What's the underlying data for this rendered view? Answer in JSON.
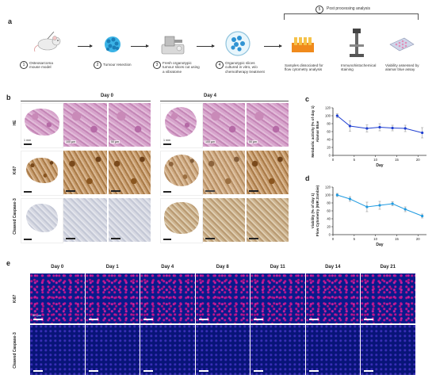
{
  "panel_labels": {
    "a": "a",
    "b": "b",
    "c": "c",
    "d": "d",
    "e": "e"
  },
  "workflow": {
    "post_processing": {
      "number": "5",
      "label": "Post processing analysis"
    },
    "steps": [
      {
        "number": "1",
        "text": "Osteosarcoma\nmouse model",
        "icon": "mouse-icon"
      },
      {
        "number": "2",
        "text": "Tumour resection",
        "icon": "tumour-cells-icon"
      },
      {
        "number": "3",
        "text": "Fresh organotypic\ntumour slices cut using\na vibratome",
        "icon": "vibratome-icon"
      },
      {
        "number": "4",
        "text": "Organotypic slices\ncultured in vitro, w/o\nchemotherapy treatment",
        "icon": "culture-dish-icon"
      }
    ],
    "post_items": [
      {
        "text": "Samples dissociated for\nflow cytometry analysis",
        "icon": "cytometry-tubes-icon"
      },
      {
        "text": "Immunohistochemical\nstaining",
        "icon": "microscope-icon"
      },
      {
        "text": "Viability assessed by\nalamar blue assay",
        "icon": "well-plate-icon"
      }
    ]
  },
  "histology": {
    "days": [
      "Day 0",
      "Day 4"
    ],
    "rows": [
      "HE",
      "Ki67",
      "Cleaved Caspase-3"
    ],
    "scale_labels": {
      "whole": "1 mm",
      "mid": "100 µm",
      "zoom": "50 µm"
    }
  },
  "chart_data": [
    {
      "type": "line",
      "panel": "c",
      "ylabel": "Metabolic activity (% of day 1)\nAlamar Blue",
      "xlabel": "Day",
      "xlim": [
        0,
        22
      ],
      "ylim": [
        0,
        120
      ],
      "xticks": [
        0,
        5,
        10,
        15,
        20
      ],
      "yticks": [
        0,
        20,
        40,
        60,
        80,
        100,
        120
      ],
      "x": [
        1,
        4,
        8,
        11,
        14,
        17,
        21
      ],
      "y": [
        100,
        74,
        68,
        71,
        69,
        68,
        57
      ],
      "error": [
        5,
        13,
        9,
        9,
        7,
        8,
        13
      ],
      "color": "#1f3fd1",
      "grid": false
    },
    {
      "type": "line",
      "panel": "d",
      "ylabel": "Viability (% of day 1)\nFlow Cytometry (NIR Zombie)",
      "xlabel": "Day",
      "xlim": [
        0,
        22
      ],
      "ylim": [
        0,
        120
      ],
      "xticks": [
        0,
        5,
        10,
        15,
        20
      ],
      "yticks": [
        0,
        20,
        40,
        60,
        80,
        100,
        120
      ],
      "x": [
        1,
        4,
        8,
        11,
        14,
        17,
        21
      ],
      "y": [
        100,
        90,
        70,
        74,
        78,
        64,
        47
      ],
      "error": [
        4,
        6,
        12,
        10,
        5,
        6,
        5
      ],
      "color": "#1f9ae0",
      "grid": false
    }
  ],
  "fluorescence": {
    "days": [
      "Day 0",
      "Day 1",
      "Day 4",
      "Day 8",
      "Day 11",
      "Day 14",
      "Day 21"
    ],
    "rows": [
      "Ki67",
      "Cleaved Caspase-3"
    ],
    "scale_label": "50 µm"
  }
}
